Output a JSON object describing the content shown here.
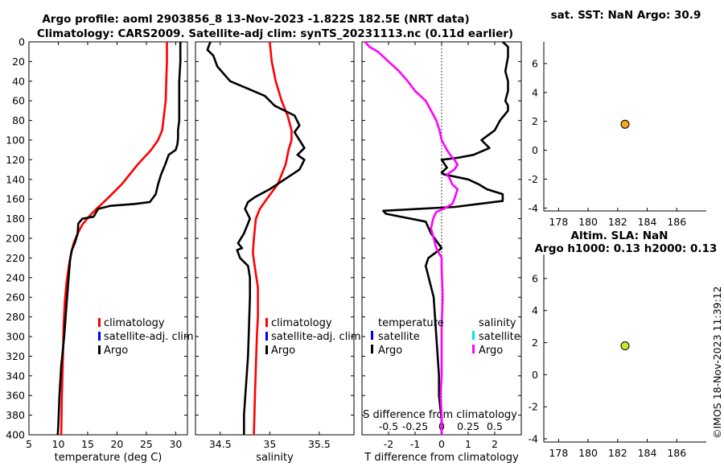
{
  "title": {
    "line1": "Argo profile: aoml 2903856_8 13-Nov-2023 -1.822S 182.5E (NRT data)",
    "line2": "Climatology: CARS2009. Satellite-adj clim: synTS_20231113.nc (0.11d earlier)"
  },
  "imos_stamp": "©IMOS 18-Nov-2023 11:39:12",
  "colors": {
    "climatology": "#ff0000",
    "satellite_clim": "#0000ff",
    "argo": "#000000",
    "sat_sal": "#00e5ee",
    "argo_sal_diff": "#ff00ff",
    "sst_marker": "#f5a623",
    "sla_marker": "#c8e632"
  },
  "chart_data": [
    {
      "id": "temperature",
      "type": "line",
      "xlabel": "temperature (deg C)",
      "ylabel": "",
      "xlim": [
        5,
        32
      ],
      "ylim": [
        0,
        400
      ],
      "y_reversed": true,
      "xticks": [
        5,
        10,
        15,
        20,
        25,
        30
      ],
      "yticks": [
        0,
        20,
        40,
        60,
        80,
        100,
        120,
        140,
        160,
        180,
        200,
        220,
        240,
        260,
        280,
        300,
        320,
        340,
        360,
        380,
        400
      ],
      "legend": [
        "climatology",
        "satellite-adj. clim",
        "Argo"
      ],
      "series": [
        {
          "name": "climatology",
          "color": "#ff0000",
          "x": [
            28.5,
            28.5,
            28.4,
            28.3,
            28.1,
            27.9,
            27.7,
            27.0,
            25.8,
            23.5,
            20.8,
            18.3,
            16.5,
            15.2,
            14.1,
            13.3,
            12.6,
            12.2,
            11.8,
            11.4,
            11.1,
            10.9,
            10.8,
            10.6,
            10.5
          ],
          "y": [
            0,
            20,
            40,
            60,
            70,
            80,
            90,
            100,
            110,
            125,
            145,
            160,
            170,
            178,
            186,
            195,
            205,
            215,
            228,
            245,
            265,
            290,
            320,
            360,
            400
          ]
        },
        {
          "name": "Argo",
          "color": "#000000",
          "x": [
            30.8,
            30.8,
            30.6,
            30.6,
            30.6,
            30.4,
            30.4,
            30.3,
            30.0,
            28.8,
            28.2,
            27.5,
            27.0,
            26.6,
            25.6,
            23.0,
            18.8,
            16.8,
            16.0,
            14.1,
            13.4,
            13.3,
            12.8,
            12.3,
            12.0,
            11.5,
            11.0,
            10.5,
            10.2,
            10.0,
            9.9
          ],
          "y": [
            0,
            20,
            40,
            60,
            80,
            90,
            98,
            104,
            110,
            115,
            125,
            135,
            145,
            155,
            163,
            165,
            167,
            170,
            178,
            180,
            185,
            195,
            205,
            212,
            222,
            260,
            300,
            330,
            360,
            390,
            400
          ]
        }
      ]
    },
    {
      "id": "salinity",
      "type": "line",
      "xlabel": "salinity",
      "xlim": [
        34.25,
        35.85
      ],
      "ylim": [
        0,
        400
      ],
      "y_reversed": true,
      "xticks": [
        34.5,
        35,
        35.5
      ],
      "xtick_labels": [
        "34.5",
        "35",
        "35.5"
      ],
      "legend": [
        "climatology",
        "satellite-adj. clim",
        "Argo"
      ],
      "series": [
        {
          "name": "climatology",
          "color": "#ff0000",
          "x": [
            35.0,
            35.02,
            35.06,
            35.12,
            35.18,
            35.22,
            35.22,
            35.19,
            35.16,
            35.08,
            34.97,
            34.9,
            34.86,
            34.84,
            34.83,
            34.85,
            34.88,
            34.88,
            34.87,
            34.86,
            34.85,
            34.84
          ],
          "y": [
            0,
            20,
            40,
            60,
            75,
            90,
            100,
            110,
            125,
            145,
            160,
            170,
            180,
            200,
            215,
            230,
            250,
            280,
            300,
            330,
            360,
            400
          ]
        },
        {
          "name": "Argo",
          "color": "#000000",
          "x": [
            34.4,
            34.37,
            34.43,
            34.47,
            34.6,
            34.95,
            35.05,
            35.25,
            35.3,
            35.25,
            35.3,
            35.35,
            35.28,
            35.35,
            35.3,
            35.15,
            35.0,
            34.85,
            34.78,
            34.75,
            34.8,
            34.74,
            34.68,
            34.72,
            34.67,
            34.7,
            34.78,
            34.8,
            34.8,
            34.79,
            34.78,
            34.76,
            34.74,
            34.74
          ],
          "y": [
            0,
            8,
            14,
            25,
            40,
            55,
            65,
            75,
            85,
            92,
            100,
            108,
            115,
            120,
            130,
            140,
            150,
            158,
            163,
            170,
            180,
            195,
            205,
            210,
            212,
            220,
            228,
            240,
            260,
            290,
            320,
            350,
            380,
            400
          ]
        }
      ]
    },
    {
      "id": "difference",
      "type": "line",
      "xlabel": "T difference from climatology",
      "xlabel2": "S difference from climatology",
      "xlim": [
        -3.0,
        3.0
      ],
      "ylim": [
        0,
        400
      ],
      "y_reversed": true,
      "xticks": [
        -2,
        -1,
        0,
        1,
        2
      ],
      "xticks2": [
        -0.5,
        -0.25,
        0,
        0.25,
        0.5
      ],
      "xtick2_labels": [
        "-0.5",
        "-0.25",
        "0",
        "0.25",
        "0.5"
      ],
      "xlim2": [
        -0.75,
        0.75
      ],
      "legend_temperature": {
        "title": "temperature",
        "items": [
          "satellite",
          "Argo"
        ]
      },
      "legend_salinity": {
        "title": "salinity",
        "items": [
          "satellite",
          "Argo"
        ]
      },
      "series": [
        {
          "name": "T difference (Argo)",
          "color": "#000000",
          "axis": "T",
          "x": [
            2.3,
            2.5,
            2.5,
            2.4,
            2.5,
            2.5,
            2.4,
            2.5,
            2.5,
            2.2,
            2.0,
            1.5,
            1.8,
            1.2,
            0.6,
            0.0,
            0.2,
            0.0,
            0.1,
            1.0,
            1.4,
            1.7,
            2.3,
            2.3,
            0.5,
            -2.2,
            -2.1,
            -0.6,
            -0.4,
            0.0,
            -0.5,
            -0.6,
            -0.3,
            -0.2,
            -0.1,
            -0.1,
            0.0,
            0.0
          ],
          "y": [
            0,
            5,
            15,
            30,
            40,
            50,
            60,
            65,
            70,
            80,
            90,
            100,
            108,
            115,
            118,
            120,
            128,
            133,
            135,
            140,
            145,
            150,
            155,
            162,
            168,
            172,
            175,
            183,
            195,
            210,
            220,
            228,
            260,
            300,
            340,
            360,
            385,
            400
          ]
        },
        {
          "name": "S difference (Argo)",
          "color": "#ff00ff",
          "axis": "S",
          "x": [
            -0.72,
            -0.68,
            -0.6,
            -0.5,
            -0.4,
            -0.32,
            -0.25,
            -0.2,
            -0.15,
            -0.1,
            -0.05,
            -0.02,
            0.0,
            0.05,
            0.08,
            0.12,
            0.15,
            0.12,
            0.05,
            0.08,
            0.1,
            0.15,
            0.12,
            0.1,
            0.05,
            0.02,
            -0.05,
            -0.08,
            -0.1,
            -0.05,
            0.0,
            0.0,
            0.01,
            0.0,
            0.0,
            0.0,
            -0.01,
            0.0,
            0.0
          ],
          "y": [
            0,
            5,
            10,
            20,
            30,
            40,
            50,
            55,
            60,
            70,
            80,
            90,
            100,
            110,
            115,
            120,
            125,
            130,
            135,
            140,
            145,
            150,
            160,
            165,
            168,
            170,
            173,
            180,
            190,
            210,
            220,
            230,
            260,
            290,
            320,
            340,
            360,
            380,
            400
          ]
        }
      ]
    },
    {
      "id": "sat_sst",
      "type": "scatter",
      "title": "sat. SST: NaN Argo: 30.9",
      "xlim": [
        177,
        188
      ],
      "ylim": [
        -4.2,
        7.5
      ],
      "xticks": [
        178,
        180,
        182,
        184,
        186
      ],
      "yticks": [
        -4,
        -2,
        0,
        2,
        4,
        6
      ],
      "points": [
        {
          "x": 182.5,
          "y": 1.8
        }
      ]
    },
    {
      "id": "altim_sla",
      "type": "scatter",
      "title": "Altim. SLA: NaN",
      "subtitle": "Argo h1000: 0.13 h2000: 0.13",
      "xlim": [
        177,
        188
      ],
      "ylim": [
        -4.2,
        7.5
      ],
      "xticks": [
        178,
        180,
        182,
        184,
        186
      ],
      "yticks": [
        -4,
        -2,
        0,
        2,
        4,
        6
      ],
      "points": [
        {
          "x": 182.5,
          "y": 1.8
        }
      ]
    }
  ]
}
